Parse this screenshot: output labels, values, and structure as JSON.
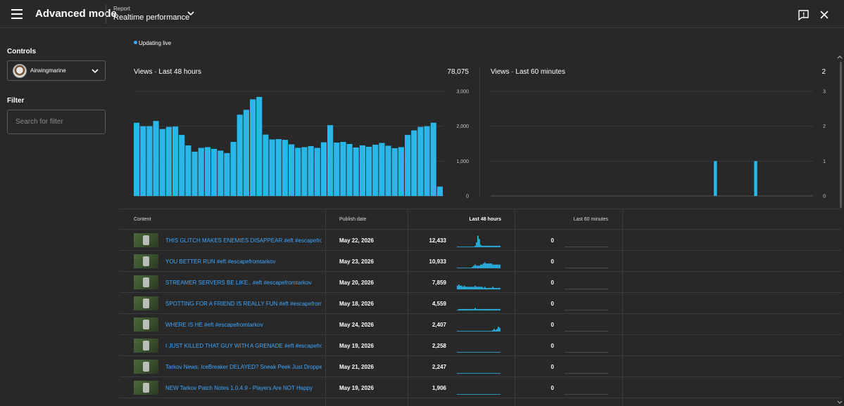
{
  "header": {
    "app_title": "Advanced mode",
    "report_label": "Report",
    "report_value": "Realtime performance",
    "icons": [
      "menu-icon",
      "chevron-down-icon",
      "feedback-icon",
      "close-icon"
    ]
  },
  "sidebar": {
    "controls_label": "Controls",
    "channel_name": "Airwingmarine",
    "filter_label": "Filter",
    "filter_placeholder": "Search for filter"
  },
  "status": {
    "live_text": "Updating live",
    "accent_color": "#3ea6ff"
  },
  "chart_data": [
    {
      "type": "bar",
      "title": "Views · Last 48 hours",
      "total": "78,075",
      "ylim": [
        0,
        3000
      ],
      "yticks": [
        "0",
        "1,000",
        "2,000",
        "3,000"
      ],
      "grid": true,
      "color": "#29b6e8",
      "values": [
        2100,
        2000,
        2000,
        2150,
        1920,
        1980,
        1990,
        1750,
        1450,
        1270,
        1380,
        1400,
        1350,
        1300,
        1230,
        1550,
        2330,
        2470,
        2770,
        2840,
        1760,
        1620,
        1630,
        1610,
        1480,
        1380,
        1400,
        1430,
        1380,
        1540,
        2030,
        1530,
        1550,
        1490,
        1390,
        1450,
        1410,
        1470,
        1520,
        1440,
        1370,
        1400,
        1750,
        1880,
        1980,
        2000,
        2100,
        270
      ]
    },
    {
      "type": "bar",
      "title": "Views · Last 60 minutes",
      "total": "2",
      "ylim": [
        0,
        3
      ],
      "yticks": [
        "0",
        "1",
        "2",
        "3"
      ],
      "grid": true,
      "color": "#29b6e8",
      "values": [
        0,
        0,
        0,
        0,
        0,
        0,
        0,
        0,
        0,
        0,
        0,
        0,
        0,
        0,
        0,
        0,
        0,
        0,
        0,
        0,
        0,
        0,
        0,
        0,
        0,
        0,
        0,
        0,
        0,
        0,
        0,
        0,
        0,
        0,
        0,
        0,
        0,
        0,
        0,
        0,
        0,
        0,
        0,
        0,
        0,
        0,
        0,
        0,
        0,
        0,
        0,
        0,
        0,
        0,
        0,
        0,
        0,
        0,
        0,
        0,
        0,
        0,
        0,
        0,
        0,
        0,
        0,
        0,
        0,
        0,
        0,
        0,
        1,
        0,
        0,
        0,
        0,
        0,
        0,
        0,
        0,
        0,
        0,
        0,
        0,
        1,
        0,
        0,
        0,
        0,
        0,
        0,
        0,
        0,
        0,
        0,
        0,
        0,
        0,
        0,
        0,
        0,
        0,
        0
      ]
    }
  ],
  "table": {
    "headers": {
      "content": "Content",
      "publish_date": "Publish date",
      "last48": "Last 48 hours",
      "last60": "Last 60 minutes"
    },
    "rows": [
      {
        "title": "THIS GLITCH MAKES ENEMIES DISAPPEAR #eft #escapefromtarkov",
        "date": "May 22, 2026",
        "views48": "12,433",
        "views60": "0",
        "spark": [
          0,
          0,
          0,
          0,
          0,
          0,
          0,
          0,
          0,
          0,
          0,
          0,
          0,
          1,
          4,
          10,
          7,
          2,
          1,
          1,
          1,
          1,
          1,
          1,
          1,
          1,
          1,
          1,
          1,
          1,
          1,
          1
        ]
      },
      {
        "title": "YOU BETTER RUN #eft #escapefromtarkov",
        "date": "May 23, 2026",
        "views48": "10,933",
        "views60": "0",
        "spark": [
          0,
          0,
          0,
          0,
          0,
          0,
          0,
          0,
          0,
          0,
          0,
          1,
          2,
          3,
          2,
          2,
          2,
          3,
          3,
          4,
          5,
          4,
          4,
          4,
          4,
          4,
          3,
          3,
          3,
          3,
          3,
          3
        ]
      },
      {
        "title": "STREAMER SERVERS BE LIKE.. #eft #escapefromtarkov",
        "date": "May 20, 2026",
        "views48": "7,859",
        "views60": "0",
        "spark": [
          3,
          4,
          3,
          3,
          2,
          3,
          2,
          2,
          2,
          2,
          2,
          2,
          2,
          3,
          2,
          2,
          2,
          2,
          2,
          1,
          2,
          1,
          1,
          1,
          1,
          1,
          2,
          1,
          1,
          1,
          1,
          1
        ]
      },
      {
        "title": "SPOTTING FOR A FRIEND IS REALLY FUN #eft #escapefromtarkov",
        "date": "May 18, 2026",
        "views48": "4,559",
        "views60": "0",
        "spark": [
          0,
          1,
          1,
          1,
          1,
          1,
          1,
          1,
          1,
          1,
          1,
          1,
          1,
          2,
          1,
          1,
          1,
          1,
          1,
          1,
          1,
          1,
          1,
          1,
          1,
          1,
          1,
          1,
          1,
          1,
          1,
          1
        ]
      },
      {
        "title": "WHERE IS HE #eft #escapefromtarkov",
        "date": "May 24, 2026",
        "views48": "2,407",
        "views60": "0",
        "spark": [
          0,
          0,
          0,
          0,
          0,
          0,
          0,
          0,
          0,
          0,
          0,
          0,
          0,
          0,
          0,
          0,
          0,
          0,
          0,
          0,
          0,
          0,
          0,
          0,
          0,
          0,
          1,
          2,
          1,
          2,
          4,
          3
        ]
      },
      {
        "title": "I JUST KILLED THAT GUY WITH A GRENADE #eft #escapefromtarkov",
        "date": "May 19, 2026",
        "views48": "2,258",
        "views60": "0",
        "spark": [
          0,
          0,
          0,
          0,
          0,
          0,
          0,
          0,
          0,
          0,
          0,
          0,
          0,
          0,
          0,
          0,
          0,
          0,
          0,
          0,
          0,
          0,
          0,
          0,
          0,
          0,
          0,
          0,
          0,
          0,
          0,
          0
        ]
      },
      {
        "title": "Tarkov News: IceBreaker DELAYED? Sneak Peek Just Dropped",
        "date": "May 21, 2026",
        "views48": "2,247",
        "views60": "0",
        "spark": [
          0,
          0,
          0,
          0,
          0,
          0,
          0,
          0,
          0,
          0,
          0,
          0,
          0,
          0,
          0,
          0,
          0,
          0,
          0,
          0,
          0,
          0,
          0,
          0,
          0,
          0,
          0,
          0,
          0,
          0,
          0,
          0
        ]
      },
      {
        "title": "NEW Tarkov Patch Notes 1.0.4.9 - Players Are NOT Happy",
        "date": "May 19, 2026",
        "views48": "1,906",
        "views60": "0",
        "spark": [
          0,
          0,
          0,
          0,
          0,
          0,
          0,
          0,
          0,
          0,
          0,
          0,
          0,
          0,
          0,
          0,
          0,
          0,
          0,
          0,
          0,
          0,
          0,
          0,
          0,
          0,
          0,
          0,
          0,
          0,
          0,
          0
        ]
      }
    ]
  }
}
